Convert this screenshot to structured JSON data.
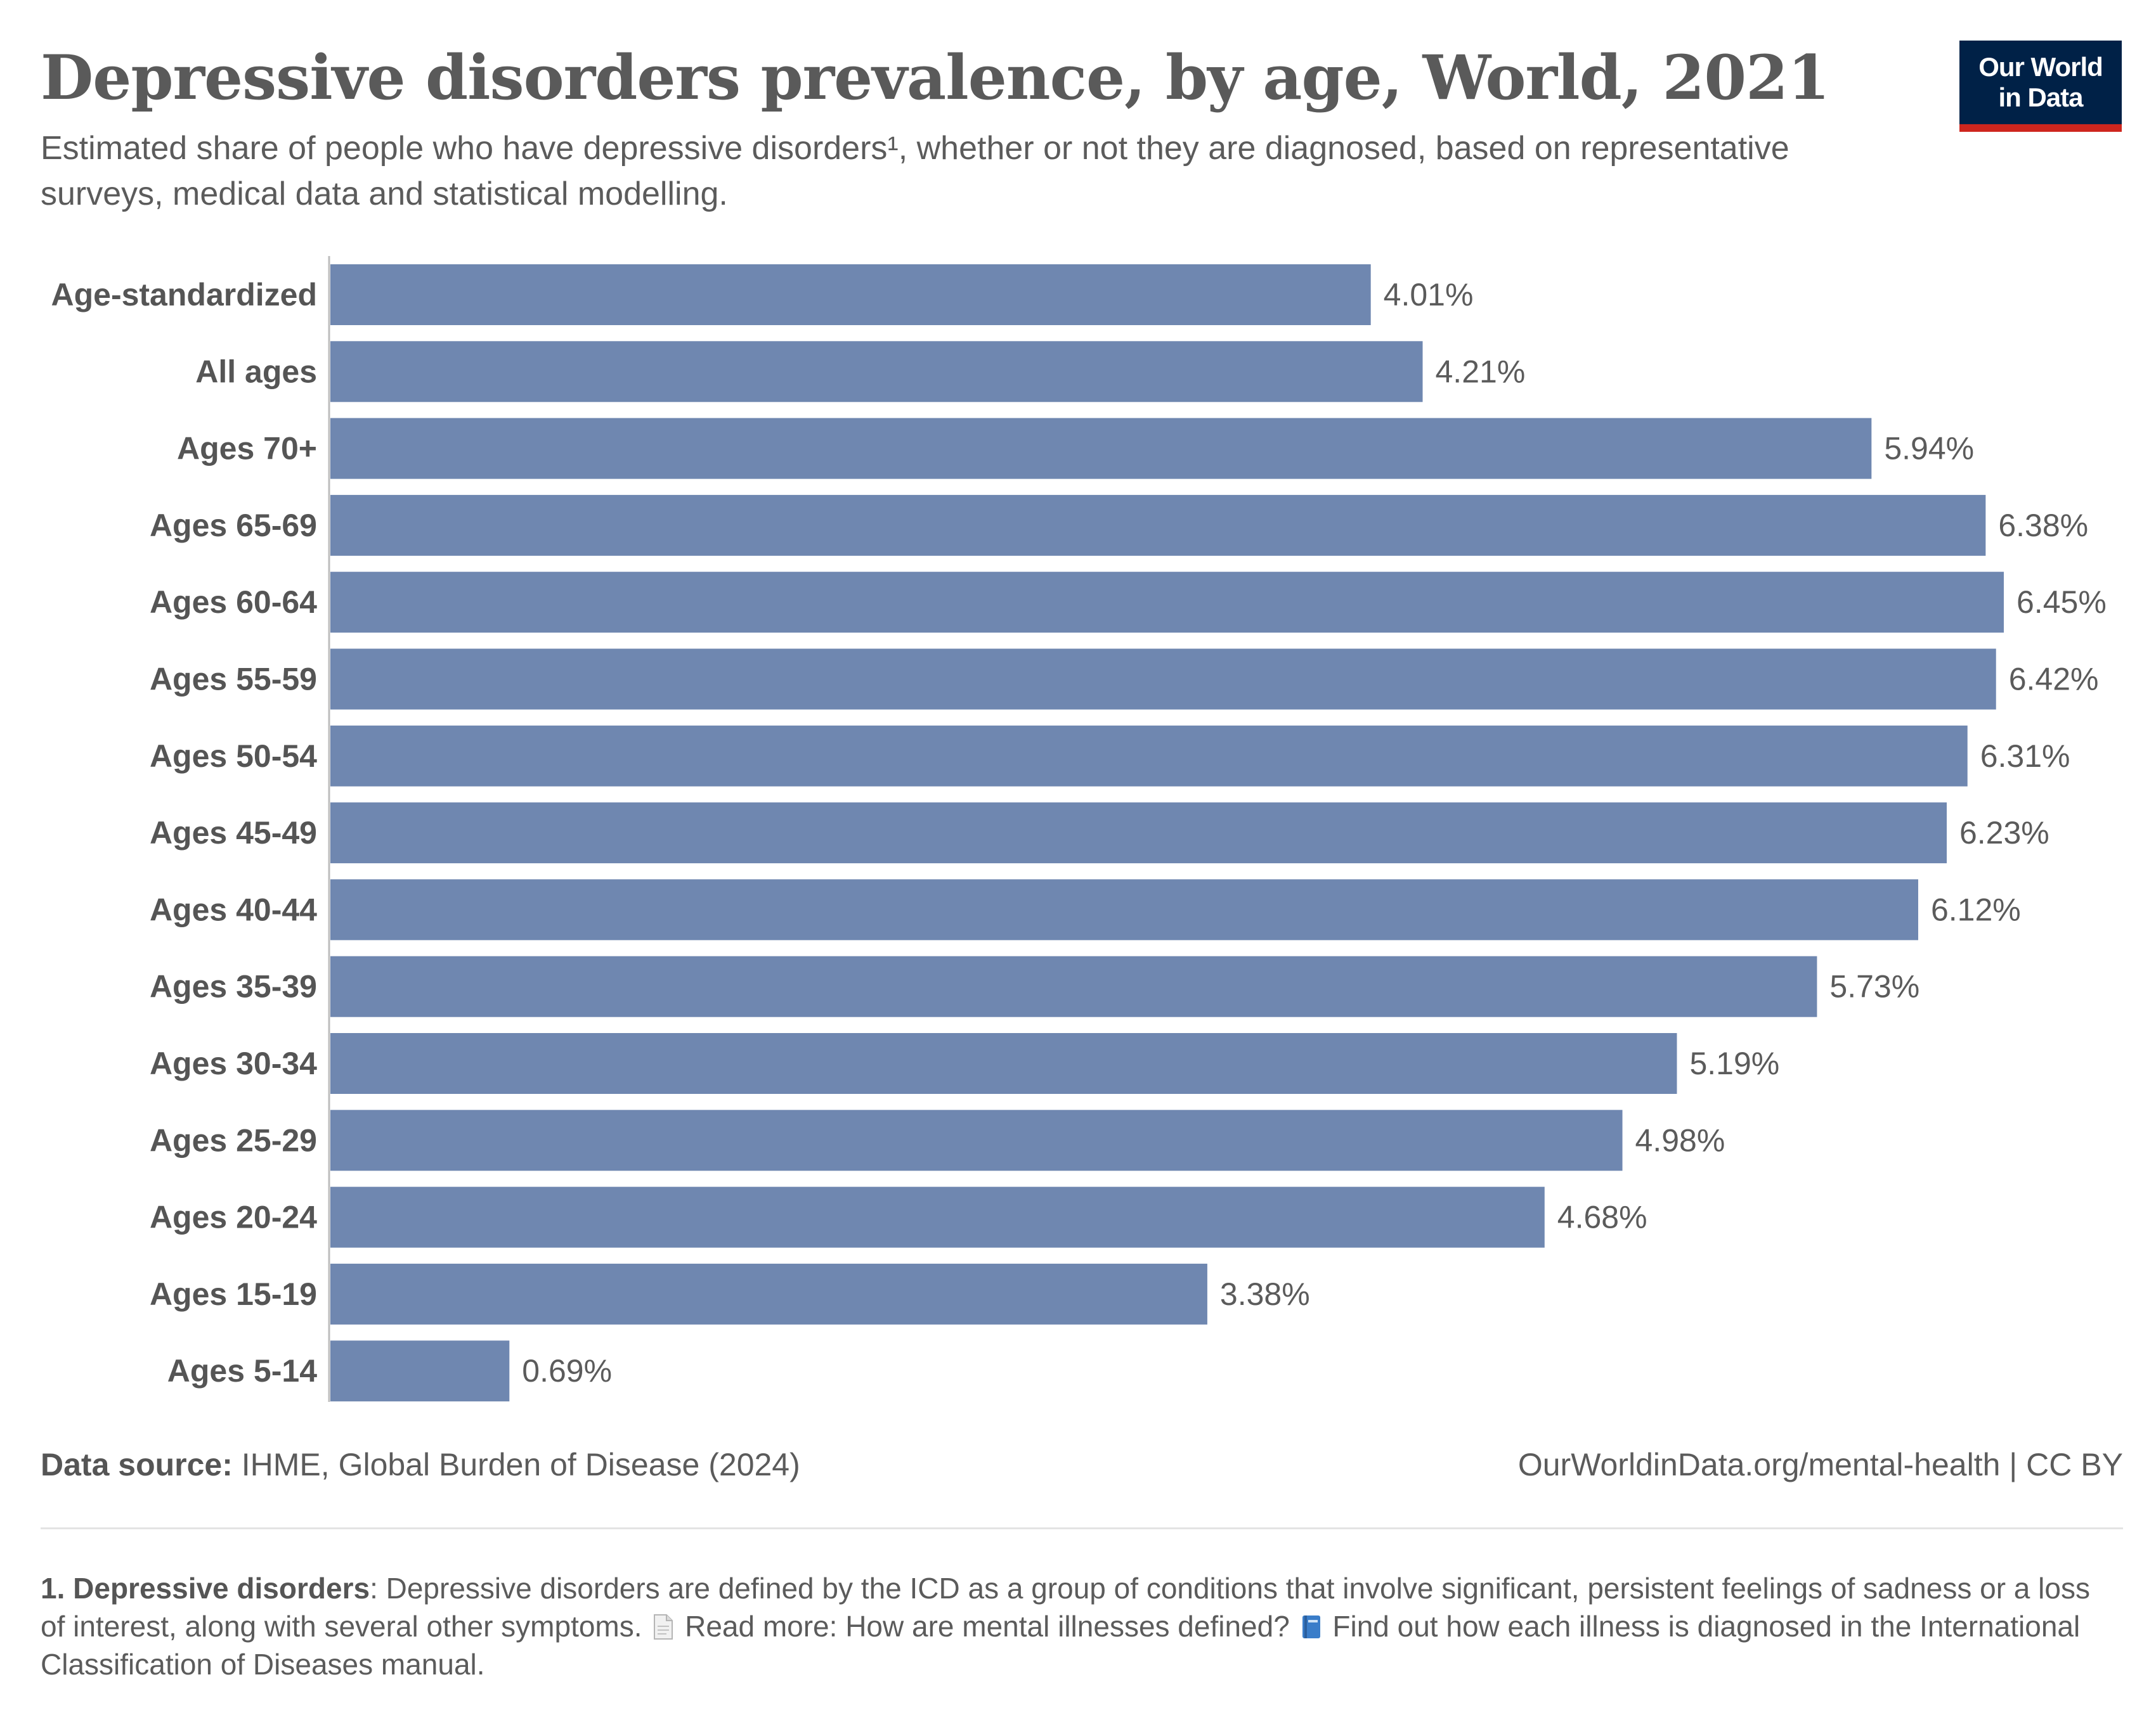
{
  "header": {
    "title": "Depressive disorders prevalence, by age, World, 2021",
    "subtitle": "Estimated share of people who have depressive disorders¹, whether or not they are diagnosed, based on representative surveys, medical data and statistical modelling.",
    "logo_line1": "Our World",
    "logo_line2": "in Data"
  },
  "colors": {
    "bar": "#6f87b0",
    "logo_bg": "#002147",
    "logo_accent": "#ce261e"
  },
  "chart_data": {
    "type": "bar",
    "orientation": "horizontal",
    "title": "Depressive disorders prevalence, by age, World, 2021",
    "categories": [
      "Age-standardized",
      "All ages",
      "Ages 70+",
      "Ages 65-69",
      "Ages 60-64",
      "Ages 55-59",
      "Ages 50-54",
      "Ages 45-49",
      "Ages 40-44",
      "Ages 35-39",
      "Ages 30-34",
      "Ages 25-29",
      "Ages 20-24",
      "Ages 15-19",
      "Ages 5-14"
    ],
    "values": [
      4.01,
      4.21,
      5.94,
      6.38,
      6.45,
      6.42,
      6.31,
      6.23,
      6.12,
      5.73,
      5.19,
      4.98,
      4.68,
      3.38,
      0.69
    ],
    "value_labels": [
      "4.01%",
      "4.21%",
      "5.94%",
      "6.38%",
      "6.45%",
      "6.42%",
      "6.31%",
      "6.23%",
      "6.12%",
      "5.73%",
      "5.19%",
      "4.98%",
      "4.68%",
      "3.38%",
      "0.69%"
    ],
    "xlim": [
      0,
      6.45
    ],
    "grid": false
  },
  "footer": {
    "source_label": "Data source:",
    "source_text": " IHME, Global Burden of Disease (2024)",
    "url_text": "OurWorldinData.org/mental-health | CC BY"
  },
  "footnote": {
    "term": "1. Depressive disorders",
    "text1": ": Depressive disorders are defined by the ICD as a group of conditions that involve significant, persistent feelings of sadness or a loss of interest, along with several other symptoms. ",
    "icon1": "document-icon",
    "text2": " Read more: How are mental illnesses defined? ",
    "icon2": "book-icon",
    "text3": " Find out how each illness is diagnosed in the International Classification of Diseases manual."
  }
}
